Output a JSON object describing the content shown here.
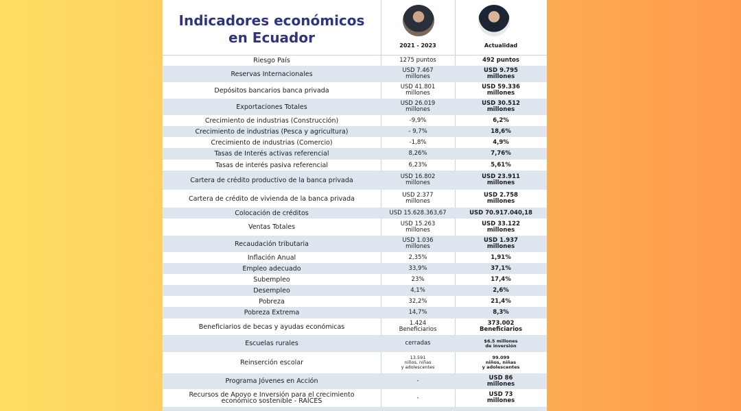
{
  "header": {
    "title": "Indicadores económicos\nen Ecuador",
    "columns": [
      "2021 - 2023",
      "Actualidad"
    ]
  },
  "table": {
    "rows": [
      [
        "Riesgo País",
        "1275 puntos",
        "492 puntos"
      ],
      [
        "Reservas Internacionales",
        "USD 7.467\nmillones",
        "USD 9.795\nmillones"
      ],
      [
        "Depósitos bancarios banca privada",
        "USD 41.801\nmillones",
        "USD 59.336\nmillones"
      ],
      [
        "Exportaciones Totales",
        "USD 26.019\nmillones",
        "USD 30.512\nmillones"
      ],
      [
        "Crecimiento de industrias (Construcción)",
        "-9,9%",
        "6,2%"
      ],
      [
        "Crecimiento de industrias (Pesca y agricultura)",
        "- 9,7%",
        "18,6%"
      ],
      [
        "Crecimiento de industrias (Comercio)",
        "-1,8%",
        "4,9%"
      ],
      [
        "Tasas de Interés activas referencial",
        "8,26%",
        "7,76%"
      ],
      [
        "Tasas de interés pasiva referencial",
        "6,23%",
        "5,61%"
      ],
      [
        "Cartera de crédito productivo de la banca privada",
        "USD 16.802\nmillones",
        "USD 23.911\nmillones"
      ],
      [
        "Cartera de crédito de vivienda de la banca privada",
        "USD 2.377\nmillones",
        "USD 2.758\nmillones"
      ],
      [
        "Colocación de créditos",
        "USD 15.628.363,67",
        "USD 70.917.040,18"
      ],
      [
        "Ventas Totales",
        "USD 15.263\nmillones",
        "USD 33.122\nmillones"
      ],
      [
        "Recaudación tributaria",
        "USD 1.036\nmillones",
        "USD 1.937\nmillones"
      ],
      [
        "Inflación Anual",
        "2,35%",
        "1,91%"
      ],
      [
        "Empleo adecuado",
        "33,9%",
        "37,1%"
      ],
      [
        "Subempleo",
        "23%",
        "17,4%"
      ],
      [
        "Desempleo",
        "4,1%",
        "2,6%"
      ],
      [
        "Pobreza",
        "32,2%",
        "21,4%"
      ],
      [
        "Pobreza Extrema",
        "14,7%",
        "8,3%"
      ],
      [
        "Beneficiarios de becas y ayudas económicas",
        "1.424\nBeneficiarios",
        "373.002\nBeneficiarios"
      ],
      [
        "Escuelas rurales",
        "cerradas",
        "$6.5 millones\nde inversión"
      ],
      [
        "Reinserción escolar",
        "13.591\nniños, niñas\ny adolescentes",
        "99.099\nniños, niñas\ny adolescentes"
      ],
      [
        "Programa Jóvenes en Acción",
        "-",
        "USD 86\nmillones"
      ],
      [
        "Recursos de Apoyo e Inversión para el crecimiento\neconómico sostenible - RAÍCES",
        "-",
        "USD 73\nmillones"
      ]
    ]
  }
}
